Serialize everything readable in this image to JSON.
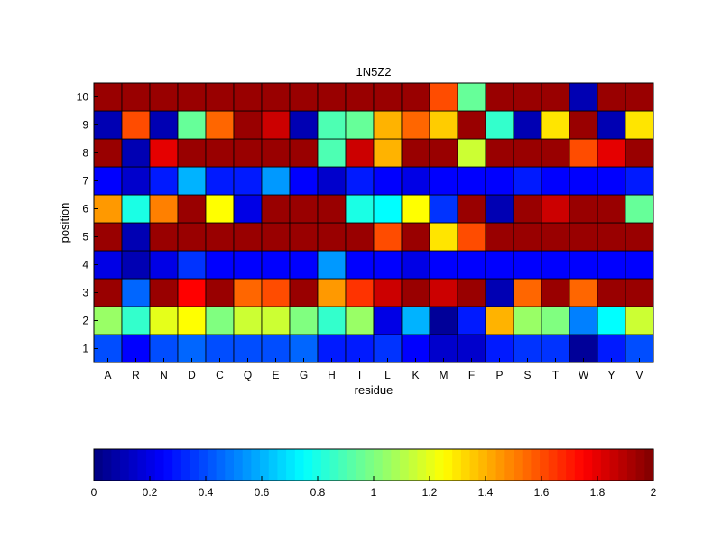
{
  "chart_data": {
    "type": "heatmap",
    "title": "1N5Z2",
    "xlabel": "residue",
    "ylabel": "position",
    "x_categories": [
      "A",
      "R",
      "N",
      "D",
      "C",
      "Q",
      "E",
      "G",
      "H",
      "I",
      "L",
      "K",
      "M",
      "F",
      "P",
      "S",
      "T",
      "W",
      "Y",
      "V"
    ],
    "y_categories": [
      "1",
      "2",
      "3",
      "4",
      "5",
      "6",
      "7",
      "8",
      "9",
      "10"
    ],
    "values": [
      [
        0.4,
        0.25,
        0.4,
        0.45,
        0.4,
        0.4,
        0.4,
        0.45,
        0.3,
        0.3,
        0.35,
        0.25,
        0.15,
        0.15,
        0.3,
        0.35,
        0.35,
        0.05,
        0.3,
        0.4
      ],
      [
        1.05,
        0.85,
        1.2,
        1.25,
        1.0,
        1.15,
        1.15,
        1.0,
        0.85,
        1.05,
        0.2,
        0.6,
        0.05,
        0.3,
        1.4,
        1.05,
        1.0,
        0.5,
        0.75,
        1.15
      ],
      [
        1.95,
        0.45,
        1.95,
        1.75,
        1.95,
        1.55,
        1.6,
        1.95,
        1.45,
        1.65,
        1.85,
        1.95,
        1.85,
        1.95,
        0.1,
        1.55,
        1.95,
        1.55,
        1.95,
        1.95
      ],
      [
        0.2,
        0.1,
        0.2,
        0.35,
        0.25,
        0.25,
        0.25,
        0.25,
        0.55,
        0.25,
        0.25,
        0.2,
        0.25,
        0.25,
        0.25,
        0.25,
        0.25,
        0.25,
        0.25,
        0.25
      ],
      [
        1.95,
        0.1,
        1.95,
        1.95,
        1.95,
        1.95,
        1.95,
        1.95,
        1.95,
        1.95,
        1.6,
        1.95,
        1.3,
        1.6,
        1.95,
        1.95,
        1.95,
        1.95,
        1.95,
        1.95
      ],
      [
        1.45,
        0.8,
        1.5,
        1.95,
        1.25,
        0.2,
        1.95,
        1.95,
        1.95,
        0.8,
        0.75,
        1.25,
        0.35,
        1.95,
        0.1,
        1.95,
        1.85,
        1.95,
        1.95,
        0.95
      ],
      [
        0.25,
        0.15,
        0.3,
        0.6,
        0.3,
        0.3,
        0.55,
        0.25,
        0.15,
        0.3,
        0.25,
        0.2,
        0.25,
        0.25,
        0.25,
        0.3,
        0.25,
        0.25,
        0.25,
        0.3
      ],
      [
        1.95,
        0.1,
        1.8,
        1.95,
        1.95,
        1.95,
        1.95,
        1.95,
        0.9,
        1.85,
        1.4,
        1.95,
        1.95,
        1.15,
        1.95,
        1.95,
        1.95,
        1.6,
        1.8,
        1.95
      ],
      [
        0.1,
        1.6,
        0.1,
        0.95,
        1.55,
        1.95,
        1.85,
        0.1,
        0.9,
        0.95,
        1.4,
        1.55,
        1.35,
        1.95,
        0.85,
        0.1,
        1.3,
        1.95,
        0.1,
        1.3
      ],
      [
        1.95,
        1.95,
        1.95,
        1.95,
        1.95,
        1.95,
        1.95,
        1.95,
        1.95,
        1.95,
        1.95,
        1.95,
        1.6,
        0.95,
        1.95,
        1.95,
        1.95,
        0.1,
        1.95,
        1.95
      ]
    ],
    "colormap": "jet",
    "clim": [
      0,
      2
    ],
    "colorbar": {
      "orientation": "horizontal",
      "ticks": [
        0,
        0.2,
        0.4,
        0.6,
        0.8,
        1,
        1.2,
        1.4,
        1.6,
        1.8,
        2
      ],
      "tick_labels": [
        "0",
        "0.2",
        "0.4",
        "0.6",
        "0.8",
        "1",
        "1.2",
        "1.4",
        "1.6",
        "1.8",
        "2"
      ]
    },
    "grid": true,
    "colors": {
      "axis": "#000000",
      "cell_border": "#000000",
      "background": "#ffffff"
    }
  }
}
